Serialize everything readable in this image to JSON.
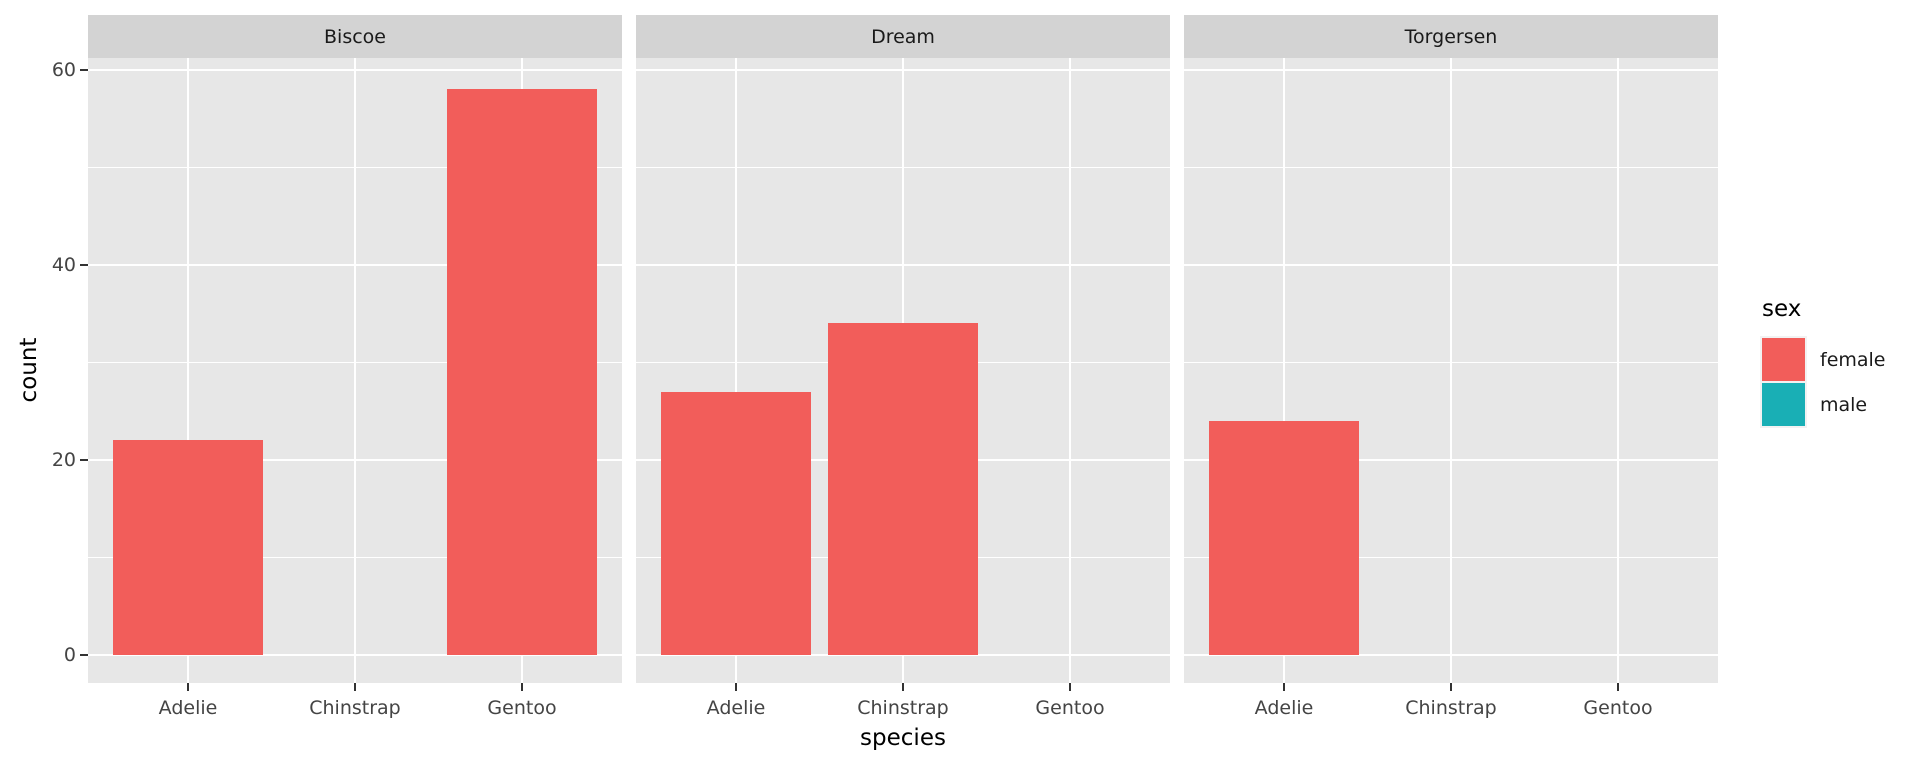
{
  "chart": {
    "xlabel": "species",
    "ylabel": "count",
    "legend": {
      "title": "sex",
      "entries": [
        {
          "label": "female",
          "color": "#F25D5A"
        },
        {
          "label": "male",
          "color": "#19AFB5"
        }
      ]
    }
  },
  "chart_data": {
    "type": "bar",
    "title": "",
    "xlabel": "species",
    "ylabel": "count",
    "categories": [
      "Adelie",
      "Chinstrap",
      "Gentoo"
    ],
    "facets": [
      {
        "label": "Biscoe",
        "series": [
          {
            "name": "female",
            "values": [
              22,
              0,
              58
            ]
          }
        ]
      },
      {
        "label": "Dream",
        "series": [
          {
            "name": "female",
            "values": [
              27,
              34,
              0
            ]
          }
        ]
      },
      {
        "label": "Torgersen",
        "series": [
          {
            "name": "female",
            "values": [
              24,
              0,
              0
            ]
          }
        ]
      }
    ],
    "series_colors": {
      "female": "#F25D5A",
      "male": "#19AFB5"
    },
    "legend_title": "sex",
    "legend_entries": [
      "female",
      "male"
    ],
    "ylim": [
      0,
      60
    ],
    "y_ticks": [
      0,
      20,
      40,
      60
    ],
    "y_minor_ticks": [
      10,
      30,
      50
    ],
    "grid": true,
    "legend_position": "right",
    "bar_width_fraction": 0.9,
    "theme": {
      "panel_bg": "#E7E7E7",
      "strip_bg": "#D3D3D3",
      "grid_color": "#FFFFFF",
      "tick_color": "#333333",
      "tick_label_color": "#444444",
      "strip_text_color": "#1A1A1A",
      "axis_title_color": "#000000"
    }
  }
}
